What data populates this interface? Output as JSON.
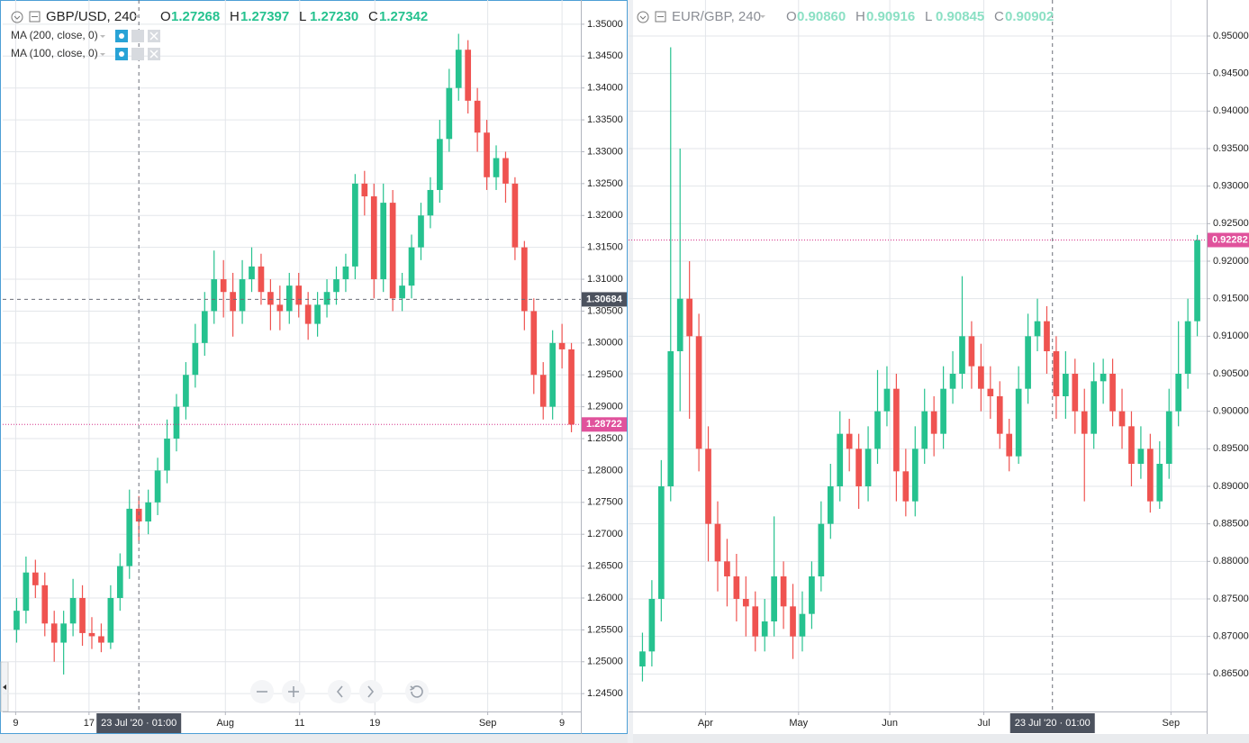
{
  "chart_data": [
    {
      "type": "candlestick",
      "symbol": "GBP/USD, 240",
      "ohlc_legend": [
        {
          "key": "O",
          "value": "1.27268"
        },
        {
          "key": "H",
          "value": "1.27397"
        },
        {
          "key": "L",
          "value": "1.27230"
        },
        {
          "key": "C",
          "value": "1.27342"
        }
      ],
      "indicators": [
        "MA (200, close, 0)",
        "MA (100, close, 0)"
      ],
      "up_color": "#26c28f",
      "down_color": "#ef5350",
      "grid": true,
      "open": [
        1.255,
        1.258,
        1.264,
        1.262,
        1.256,
        1.253,
        1.256,
        1.26,
        1.2545,
        1.254,
        1.253,
        1.26,
        1.265,
        1.274,
        1.272,
        1.275,
        1.28,
        1.285,
        1.29,
        1.295,
        1.3,
        1.305,
        1.31,
        1.308,
        1.305,
        1.31,
        1.312,
        1.308,
        1.306,
        1.305,
        1.309,
        1.306,
        1.303,
        1.306,
        1.308,
        1.31,
        1.312,
        1.325,
        1.323,
        1.31,
        1.322,
        1.307,
        1.309,
        1.315,
        1.32,
        1.324,
        1.332,
        1.34,
        1.346,
        1.338,
        1.333,
        1.326,
        1.329,
        1.325,
        1.315,
        1.305,
        1.295,
        1.29,
        1.3,
        1.299
      ],
      "high": [
        1.26,
        1.2665,
        1.266,
        1.264,
        1.258,
        1.258,
        1.263,
        1.262,
        1.257,
        1.256,
        1.262,
        1.267,
        1.277,
        1.276,
        1.277,
        1.282,
        1.288,
        1.292,
        1.297,
        1.303,
        1.308,
        1.3145,
        1.313,
        1.311,
        1.313,
        1.315,
        1.314,
        1.31,
        1.309,
        1.311,
        1.311,
        1.308,
        1.308,
        1.31,
        1.312,
        1.314,
        1.3265,
        1.327,
        1.325,
        1.325,
        1.324,
        1.311,
        1.317,
        1.322,
        1.326,
        1.335,
        1.343,
        1.3485,
        1.3475,
        1.34,
        1.335,
        1.331,
        1.33,
        1.326,
        1.316,
        1.307,
        1.297,
        1.302,
        1.303,
        1.3
      ],
      "low": [
        1.253,
        1.256,
        1.26,
        1.254,
        1.25,
        1.248,
        1.254,
        1.2525,
        1.252,
        1.2515,
        1.252,
        1.258,
        1.263,
        1.269,
        1.27,
        1.273,
        1.278,
        1.283,
        1.288,
        1.293,
        1.298,
        1.303,
        1.304,
        1.301,
        1.303,
        1.308,
        1.306,
        1.302,
        1.302,
        1.303,
        1.304,
        1.3005,
        1.301,
        1.304,
        1.306,
        1.308,
        1.31,
        1.32,
        1.307,
        1.308,
        1.305,
        1.305,
        1.307,
        1.313,
        1.318,
        1.322,
        1.33,
        1.338,
        1.336,
        1.33,
        1.324,
        1.324,
        1.322,
        1.313,
        1.302,
        1.292,
        1.288,
        1.288,
        1.296,
        1.286
      ],
      "close": [
        1.258,
        1.264,
        1.262,
        1.256,
        1.253,
        1.256,
        1.26,
        1.2545,
        1.254,
        1.253,
        1.26,
        1.265,
        1.274,
        1.272,
        1.275,
        1.28,
        1.285,
        1.29,
        1.295,
        1.3,
        1.305,
        1.31,
        1.308,
        1.305,
        1.31,
        1.312,
        1.308,
        1.306,
        1.305,
        1.309,
        1.306,
        1.303,
        1.306,
        1.308,
        1.31,
        1.312,
        1.325,
        1.323,
        1.31,
        1.322,
        1.307,
        1.309,
        1.315,
        1.32,
        1.324,
        1.332,
        1.34,
        1.346,
        1.338,
        1.333,
        1.326,
        1.329,
        1.325,
        1.315,
        1.305,
        1.295,
        1.29,
        1.3,
        1.299,
        1.2872
      ],
      "xlim": [
        -1,
        60
      ],
      "xticks": [
        {
          "value": -0.1,
          "label": "9"
        },
        {
          "value": 7.7,
          "label": "17"
        },
        {
          "value": 22.2,
          "label": "Aug"
        },
        {
          "value": 30.1,
          "label": "11"
        },
        {
          "value": 38.1,
          "label": "19"
        },
        {
          "value": 50.1,
          "label": "Sep"
        },
        {
          "value": 58.0,
          "label": "9"
        }
      ],
      "ylim": [
        1.2422,
        1.3538
      ],
      "yticks": [
        {
          "value": 1.245,
          "label": "1.24500"
        },
        {
          "value": 1.25,
          "label": "1.25000"
        },
        {
          "value": 1.255,
          "label": "1.25500"
        },
        {
          "value": 1.26,
          "label": "1.26000"
        },
        {
          "value": 1.265,
          "label": "1.26500"
        },
        {
          "value": 1.27,
          "label": "1.27000"
        },
        {
          "value": 1.275,
          "label": "1.27500"
        },
        {
          "value": 1.28,
          "label": "1.28000"
        },
        {
          "value": 1.285,
          "label": "1.28500"
        },
        {
          "value": 1.29,
          "label": "1.29000"
        },
        {
          "value": 1.295,
          "label": "1.29500"
        },
        {
          "value": 1.3,
          "label": "1.30000"
        },
        {
          "value": 1.305,
          "label": "1.30500"
        },
        {
          "value": 1.31,
          "label": "1.31000"
        },
        {
          "value": 1.315,
          "label": "1.31500"
        },
        {
          "value": 1.32,
          "label": "1.32000"
        },
        {
          "value": 1.325,
          "label": "1.32500"
        },
        {
          "value": 1.33,
          "label": "1.33000"
        },
        {
          "value": 1.335,
          "label": "1.33500"
        },
        {
          "value": 1.34,
          "label": "1.34000"
        },
        {
          "value": 1.345,
          "label": "1.34500"
        },
        {
          "value": 1.35,
          "label": "1.35000"
        }
      ],
      "crosshair_x": {
        "value": 13.0,
        "label": "23 Jul '20 · 01:00"
      },
      "crosshair_y": {
        "value": 1.30684,
        "label": "1.30684"
      },
      "last_price": {
        "value": 1.28722,
        "label": "1.28722"
      }
    },
    {
      "type": "candlestick",
      "symbol": "EUR/GBP, 240",
      "ohlc_legend": [
        {
          "key": "O",
          "value": "0.90860"
        },
        {
          "key": "H",
          "value": "0.90916"
        },
        {
          "key": "L",
          "value": "0.90845"
        },
        {
          "key": "C",
          "value": "0.90902"
        }
      ],
      "up_color": "#26c28f",
      "down_color": "#ef5350",
      "grid": true,
      "open": [
        0.866,
        0.868,
        0.875,
        0.89,
        0.908,
        0.915,
        0.91,
        0.895,
        0.885,
        0.88,
        0.878,
        0.875,
        0.874,
        0.87,
        0.872,
        0.878,
        0.874,
        0.87,
        0.873,
        0.878,
        0.885,
        0.89,
        0.897,
        0.895,
        0.89,
        0.895,
        0.9,
        0.903,
        0.892,
        0.888,
        0.895,
        0.9,
        0.897,
        0.903,
        0.905,
        0.91,
        0.906,
        0.903,
        0.902,
        0.897,
        0.894,
        0.903,
        0.91,
        0.912,
        0.908,
        0.902,
        0.905,
        0.9,
        0.897,
        0.904,
        0.905,
        0.9,
        0.898,
        0.893,
        0.895,
        0.888,
        0.893,
        0.9,
        0.905,
        0.912
      ],
      "high": [
        0.8705,
        0.8775,
        0.8935,
        0.9485,
        0.935,
        0.92,
        0.913,
        0.898,
        0.888,
        0.883,
        0.881,
        0.878,
        0.876,
        0.875,
        0.886,
        0.88,
        0.877,
        0.876,
        0.88,
        0.888,
        0.893,
        0.9,
        0.899,
        0.897,
        0.898,
        0.9055,
        0.906,
        0.905,
        0.895,
        0.898,
        0.903,
        0.902,
        0.906,
        0.908,
        0.918,
        0.912,
        0.909,
        0.906,
        0.904,
        0.899,
        0.906,
        0.913,
        0.915,
        0.914,
        0.91,
        0.908,
        0.907,
        0.903,
        0.9065,
        0.907,
        0.907,
        0.903,
        0.9,
        0.898,
        0.897,
        0.896,
        0.903,
        0.912,
        0.915,
        0.9235
      ],
      "low": [
        0.864,
        0.866,
        0.872,
        0.888,
        0.9,
        0.899,
        0.892,
        0.88,
        0.876,
        0.874,
        0.872,
        0.87,
        0.868,
        0.868,
        0.87,
        0.871,
        0.867,
        0.868,
        0.871,
        0.876,
        0.883,
        0.888,
        0.892,
        0.887,
        0.888,
        0.893,
        0.898,
        0.888,
        0.886,
        0.886,
        0.893,
        0.894,
        0.895,
        0.901,
        0.903,
        0.903,
        0.9,
        0.899,
        0.895,
        0.892,
        0.893,
        0.901,
        0.908,
        0.905,
        0.899,
        0.899,
        0.897,
        0.888,
        0.895,
        0.901,
        0.898,
        0.895,
        0.89,
        0.891,
        0.8865,
        0.887,
        0.891,
        0.898,
        0.903,
        0.91
      ],
      "close": [
        0.868,
        0.875,
        0.89,
        0.908,
        0.915,
        0.91,
        0.895,
        0.885,
        0.88,
        0.878,
        0.875,
        0.874,
        0.87,
        0.872,
        0.878,
        0.874,
        0.87,
        0.873,
        0.878,
        0.885,
        0.89,
        0.897,
        0.895,
        0.89,
        0.895,
        0.9,
        0.903,
        0.892,
        0.888,
        0.895,
        0.9,
        0.897,
        0.903,
        0.905,
        0.91,
        0.906,
        0.903,
        0.902,
        0.897,
        0.894,
        0.903,
        0.91,
        0.912,
        0.908,
        0.902,
        0.905,
        0.9,
        0.897,
        0.904,
        0.905,
        0.9,
        0.898,
        0.893,
        0.895,
        0.888,
        0.893,
        0.9,
        0.905,
        0.912,
        0.9228
      ],
      "xlim": [
        -1,
        60
      ],
      "xticks": [
        {
          "value": 6.7,
          "label": "Apr"
        },
        {
          "value": 16.6,
          "label": "May"
        },
        {
          "value": 26.3,
          "label": "Jun"
        },
        {
          "value": 36.3,
          "label": "Jul"
        },
        {
          "value": 56.2,
          "label": "Sep"
        }
      ],
      "ylim": [
        0.86,
        0.9548
      ],
      "yticks": [
        {
          "value": 0.865,
          "label": "0.86500"
        },
        {
          "value": 0.87,
          "label": "0.87000"
        },
        {
          "value": 0.875,
          "label": "0.87500"
        },
        {
          "value": 0.88,
          "label": "0.88000"
        },
        {
          "value": 0.885,
          "label": "0.88500"
        },
        {
          "value": 0.89,
          "label": "0.89000"
        },
        {
          "value": 0.895,
          "label": "0.89500"
        },
        {
          "value": 0.9,
          "label": "0.90000"
        },
        {
          "value": 0.905,
          "label": "0.90500"
        },
        {
          "value": 0.91,
          "label": "0.91000"
        },
        {
          "value": 0.915,
          "label": "0.91500"
        },
        {
          "value": 0.92,
          "label": "0.92000"
        },
        {
          "value": 0.925,
          "label": "0.92500"
        },
        {
          "value": 0.93,
          "label": "0.93000"
        },
        {
          "value": 0.935,
          "label": "0.93500"
        },
        {
          "value": 0.94,
          "label": "0.94000"
        },
        {
          "value": 0.945,
          "label": "0.94500"
        },
        {
          "value": 0.95,
          "label": "0.95000"
        }
      ],
      "crosshair_x": {
        "value": 43.6,
        "label": "23 Jul '20 · 01:00"
      },
      "last_price": {
        "value": 0.92282,
        "label": "0.92282"
      }
    }
  ]
}
